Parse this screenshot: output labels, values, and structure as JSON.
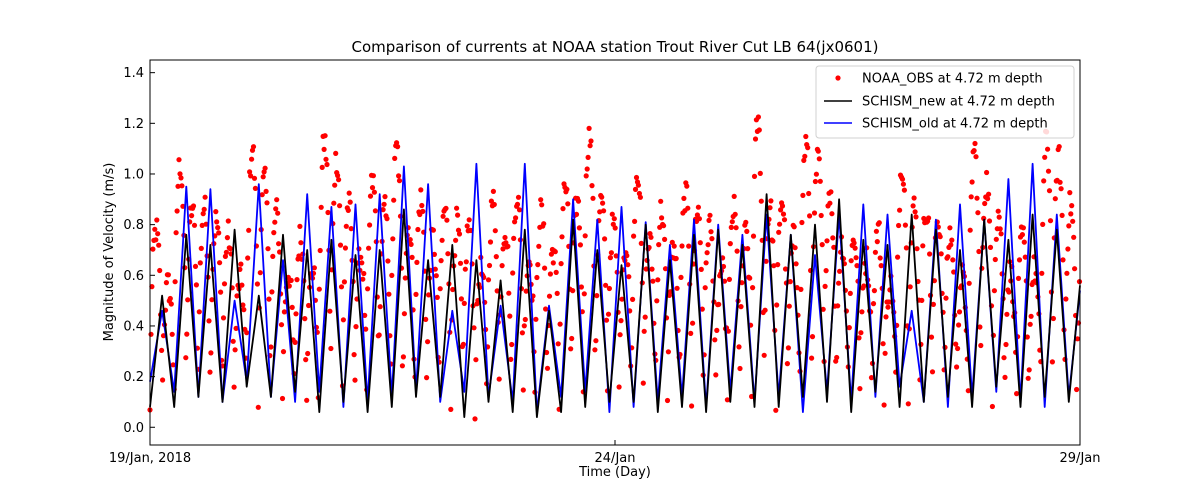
{
  "chart_data": {
    "type": "line",
    "title": "Comparison of currents at NOAA station Trout River Cut LB 64(jx0601)",
    "xlabel": "Time (Day)",
    "ylabel": "Magnitude of Velocity (m/s)",
    "xlim": [
      0,
      10
    ],
    "ylim": [
      -0.07,
      1.45
    ],
    "x_ticks": [
      {
        "x": 0,
        "label": "19/Jan, 2018"
      },
      {
        "x": 5,
        "label": "24/Jan"
      },
      {
        "x": 10,
        "label": "29/Jan"
      }
    ],
    "y_ticks": [
      {
        "y": 0.0,
        "label": "0.0"
      },
      {
        "y": 0.2,
        "label": "0.2"
      },
      {
        "y": 0.4,
        "label": "0.4"
      },
      {
        "y": 0.6,
        "label": "0.6"
      },
      {
        "y": 0.8,
        "label": "0.8"
      },
      {
        "y": 1.0,
        "label": "1.0"
      },
      {
        "y": 1.2,
        "label": "1.2"
      },
      {
        "y": 1.4,
        "label": "1.4"
      }
    ],
    "legend_position": "top-right",
    "series": [
      {
        "name": "NOAA_OBS at 4.72 m depth",
        "style": "scatter",
        "color": "#ff0000",
        "tidal_period_days": 0.2588,
        "peak_values": [
          0.78,
          1.04,
          0.87,
          0.76,
          1.1,
          0.85,
          0.75,
          1.13,
          0.88,
          0.97,
          1.1,
          0.9,
          0.86,
          0.8,
          0.89,
          0.92,
          0.85,
          0.95,
          1.15,
          0.8,
          1.02,
          0.86,
          0.92,
          0.8,
          0.86,
          1.2,
          0.9,
          1.12,
          0.94,
          0.75
        ],
        "trough_values": [
          0.05,
          0.02,
          0.03,
          0.05,
          0.04,
          0.03,
          0.02,
          0.03,
          0.04,
          0.05,
          0.02,
          0.03,
          0.03,
          0.02,
          0.05,
          0.03,
          0.02,
          0.03,
          0.04,
          0.05,
          0.03,
          0.02,
          0.01,
          0.03,
          0.02,
          0.05,
          0.02,
          0.03,
          0.04,
          0.05
        ]
      },
      {
        "name": "SCHISM_new at 4.72 m depth",
        "style": "line",
        "color": "#000000",
        "x": [
          0.0,
          0.13,
          0.26,
          0.39,
          0.52,
          0.65,
          0.78,
          0.91,
          1.04,
          1.17,
          1.3,
          1.43,
          1.56,
          1.69,
          1.82,
          1.95,
          2.08,
          2.21,
          2.34,
          2.47,
          2.6,
          2.73,
          2.86,
          2.99,
          3.12,
          3.25,
          3.38,
          3.51,
          3.64,
          3.77,
          3.9,
          4.03,
          4.16,
          4.29,
          4.42,
          4.55,
          4.68,
          4.81,
          4.94,
          5.07,
          5.2,
          5.33,
          5.46,
          5.59,
          5.72,
          5.85,
          5.98,
          6.11,
          6.24,
          6.37,
          6.5,
          6.63,
          6.76,
          6.89,
          7.02,
          7.15,
          7.28,
          7.41,
          7.54,
          7.67,
          7.8,
          7.93,
          8.06,
          8.19,
          8.32,
          8.45,
          8.58,
          8.71,
          8.84,
          8.97,
          9.1,
          9.23,
          9.36,
          9.49,
          9.62,
          9.75,
          9.88,
          10.0
        ],
        "values": [
          0.08,
          0.52,
          0.08,
          0.76,
          0.12,
          0.72,
          0.1,
          0.78,
          0.16,
          0.52,
          0.12,
          0.76,
          0.14,
          0.7,
          0.06,
          0.74,
          0.1,
          0.68,
          0.06,
          0.7,
          0.08,
          0.86,
          0.12,
          0.66,
          0.12,
          0.72,
          0.04,
          0.66,
          0.1,
          0.58,
          0.06,
          0.78,
          0.04,
          0.46,
          0.06,
          0.82,
          0.08,
          0.7,
          0.1,
          0.64,
          0.1,
          0.8,
          0.06,
          0.66,
          0.08,
          0.76,
          0.06,
          0.78,
          0.1,
          0.72,
          0.08,
          0.92,
          0.08,
          0.76,
          0.12,
          0.8,
          0.1,
          0.9,
          0.06,
          0.74,
          0.14,
          0.72,
          0.08,
          0.84,
          0.1,
          0.78,
          0.12,
          0.7,
          0.08,
          0.82,
          0.16,
          0.74,
          0.08,
          0.84,
          0.12,
          0.78,
          0.1,
          0.56
        ]
      },
      {
        "name": "SCHISM_old at 4.72 m depth",
        "style": "line",
        "color": "#0000ff",
        "x": [
          0.0,
          0.13,
          0.26,
          0.39,
          0.52,
          0.65,
          0.78,
          0.91,
          1.04,
          1.17,
          1.3,
          1.43,
          1.56,
          1.69,
          1.82,
          1.95,
          2.08,
          2.21,
          2.34,
          2.47,
          2.6,
          2.73,
          2.86,
          2.99,
          3.12,
          3.25,
          3.38,
          3.51,
          3.64,
          3.77,
          3.9,
          4.03,
          4.16,
          4.29,
          4.42,
          4.55,
          4.68,
          4.81,
          4.94,
          5.07,
          5.2,
          5.33,
          5.46,
          5.59,
          5.72,
          5.85,
          5.98,
          6.11,
          6.24,
          6.37,
          6.5,
          6.63,
          6.76,
          6.89,
          7.02,
          7.15,
          7.28,
          7.41,
          7.54,
          7.67,
          7.8,
          7.93,
          8.06,
          8.19,
          8.32,
          8.45,
          8.58,
          8.71,
          8.84,
          8.97,
          9.1,
          9.23,
          9.36,
          9.49,
          9.62,
          9.75,
          9.88,
          10.0
        ],
        "values": [
          0.18,
          0.46,
          0.14,
          0.95,
          0.12,
          0.94,
          0.1,
          0.5,
          0.18,
          0.96,
          0.12,
          0.66,
          0.1,
          0.92,
          0.14,
          0.87,
          0.08,
          0.88,
          0.1,
          0.92,
          0.12,
          1.03,
          0.14,
          0.96,
          0.1,
          0.46,
          0.14,
          1.04,
          0.12,
          0.48,
          0.1,
          1.04,
          0.06,
          0.48,
          0.12,
          0.9,
          0.14,
          0.82,
          0.06,
          0.87,
          0.08,
          0.81,
          0.1,
          0.72,
          0.12,
          0.82,
          0.08,
          0.8,
          0.14,
          0.76,
          0.1,
          0.84,
          0.12,
          0.76,
          0.06,
          0.68,
          0.14,
          0.84,
          0.1,
          0.88,
          0.12,
          0.84,
          0.16,
          0.46,
          0.1,
          0.82,
          0.08,
          0.88,
          0.12,
          0.82,
          0.14,
          0.98,
          0.1,
          1.04,
          0.08,
          0.84,
          0.12,
          0.54
        ]
      }
    ]
  }
}
